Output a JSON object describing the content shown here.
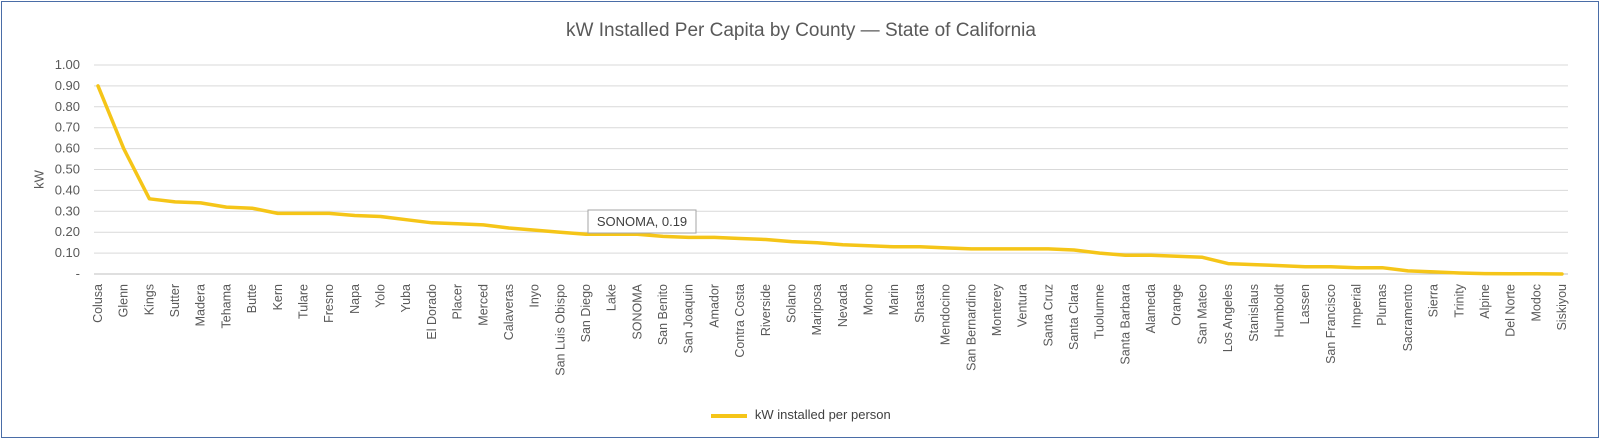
{
  "chart_data": {
    "type": "line",
    "title": "kW Installed Per Capita by County — State of California",
    "ylabel": "kW",
    "xlabel": "",
    "ylim": [
      0,
      1.0
    ],
    "yticks": [
      "-",
      "0.10",
      "0.20",
      "0.30",
      "0.40",
      "0.50",
      "0.60",
      "0.70",
      "0.80",
      "0.90",
      "1.00"
    ],
    "categories": [
      "Colusa",
      "Glenn",
      "Kings",
      "Sutter",
      "Madera",
      "Tehama",
      "Butte",
      "Kern",
      "Tulare",
      "Fresno",
      "Napa",
      "Yolo",
      "Yuba",
      "El Dorado",
      "Placer",
      "Merced",
      "Calaveras",
      "Inyo",
      "San Luis Obispo",
      "San Diego",
      "Lake",
      "SONOMA",
      "San Benito",
      "San Joaquin",
      "Amador",
      "Contra Costa",
      "Riverside",
      "Solano",
      "Mariposa",
      "Nevada",
      "Mono",
      "Marin",
      "Shasta",
      "Mendocino",
      "San Bernardino",
      "Monterey",
      "Ventura",
      "Santa Cruz",
      "Santa Clara",
      "Tuolumne",
      "Santa Barbara",
      "Alameda",
      "Orange",
      "San Mateo",
      "Los Angeles",
      "Stanislaus",
      "Humboldt",
      "Lassen",
      "San Francisco",
      "Imperial",
      "Plumas",
      "Sacramento",
      "Sierra",
      "Trinity",
      "Alpine",
      "Del Norte",
      "Modoc",
      "Siskiyou"
    ],
    "series": [
      {
        "name": "kW installed per person",
        "color": "#F5C518",
        "values": [
          0.9,
          0.6,
          0.36,
          0.345,
          0.34,
          0.32,
          0.315,
          0.29,
          0.29,
          0.29,
          0.28,
          0.275,
          0.26,
          0.245,
          0.24,
          0.235,
          0.22,
          0.21,
          0.2,
          0.19,
          0.19,
          0.19,
          0.18,
          0.175,
          0.175,
          0.17,
          0.165,
          0.155,
          0.15,
          0.14,
          0.135,
          0.13,
          0.13,
          0.125,
          0.12,
          0.12,
          0.12,
          0.12,
          0.115,
          0.1,
          0.09,
          0.09,
          0.085,
          0.08,
          0.05,
          0.045,
          0.04,
          0.035,
          0.035,
          0.03,
          0.03,
          0.015,
          0.01,
          0.005,
          0.002,
          0.001,
          0.001,
          0.0
        ]
      }
    ],
    "annotation": {
      "category": "SONOMA",
      "text": "SONOMA,  0.19"
    },
    "grid": true,
    "legend_position": "bottom"
  }
}
